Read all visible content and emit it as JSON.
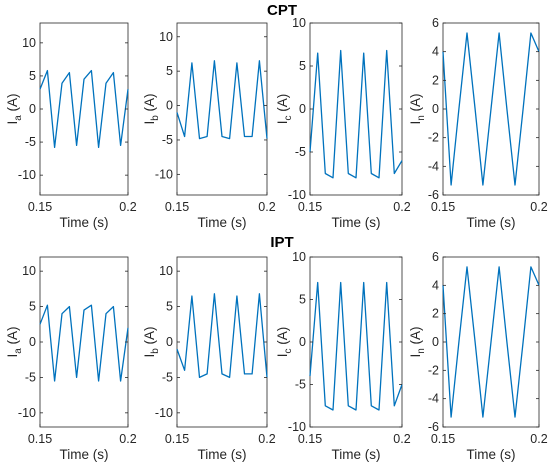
{
  "figure": {
    "groups": [
      {
        "title": "CPT",
        "panels": [
          {
            "ylabel_main": "I",
            "ylabel_sub": "a",
            "ylabel_unit": "(A)",
            "xlabel": "Time (s)",
            "xlim": [
              0.15,
              0.2
            ],
            "ylim": [
              -13,
              13
            ],
            "yticks": [
              -10,
              -5,
              0,
              5,
              10
            ],
            "xticks": [
              "0.15",
              "0.2"
            ]
          },
          {
            "ylabel_main": "I",
            "ylabel_sub": "b",
            "ylabel_unit": "(A)",
            "xlabel": "Time (s)",
            "xlim": [
              0.15,
              0.2
            ],
            "ylim": [
              -13,
              12
            ],
            "yticks": [
              -10,
              -5,
              0,
              5,
              10
            ],
            "xticks": [
              "0.15",
              "0.2"
            ]
          },
          {
            "ylabel_main": "I",
            "ylabel_sub": "c",
            "ylabel_unit": "(A)",
            "xlabel": "Time (s)",
            "xlim": [
              0.15,
              0.2
            ],
            "ylim": [
              -10,
              10
            ],
            "yticks": [
              -10,
              -5,
              0,
              5,
              10
            ],
            "xticks": [
              "0.15",
              "0.2"
            ]
          },
          {
            "ylabel_main": "I",
            "ylabel_sub": "n",
            "ylabel_unit": "(A)",
            "xlabel": "Time (s)",
            "xlim": [
              0.15,
              0.2
            ],
            "ylim": [
              -6,
              6
            ],
            "yticks": [
              -6,
              -4,
              -2,
              0,
              2,
              4,
              6
            ],
            "xticks": [
              "0.15",
              "0.2"
            ]
          }
        ]
      },
      {
        "title": "IPT",
        "panels": [
          {
            "ylabel_main": "I",
            "ylabel_sub": "a",
            "ylabel_unit": "(A)",
            "xlabel": "Time (s)",
            "xlim": [
              0.15,
              0.2
            ],
            "ylim": [
              -12,
              12
            ],
            "yticks": [
              -10,
              -5,
              0,
              5,
              10
            ],
            "xticks": [
              "0.15",
              "0.2"
            ]
          },
          {
            "ylabel_main": "I",
            "ylabel_sub": "b",
            "ylabel_unit": "(A)",
            "xlabel": "Time (s)",
            "xlim": [
              0.15,
              0.2
            ],
            "ylim": [
              -12,
              12
            ],
            "yticks": [
              -10,
              -5,
              0,
              5,
              10
            ],
            "xticks": [
              "0.15",
              "0.2"
            ]
          },
          {
            "ylabel_main": "I",
            "ylabel_sub": "c",
            "ylabel_unit": "(A)",
            "xlabel": "Time (s)",
            "xlim": [
              0.15,
              0.2
            ],
            "ylim": [
              -10,
              10
            ],
            "yticks": [
              -10,
              -5,
              0,
              5,
              10
            ],
            "xticks": [
              "0.15",
              "0.2"
            ]
          },
          {
            "ylabel_main": "I",
            "ylabel_sub": "n",
            "ylabel_unit": "(A)",
            "xlabel": "Time (s)",
            "xlim": [
              0.15,
              0.2
            ],
            "ylim": [
              -6,
              6
            ],
            "yticks": [
              -6,
              -4,
              -2,
              0,
              2,
              4,
              6
            ],
            "xticks": [
              "0.15",
              "0.2"
            ]
          }
        ]
      }
    ]
  },
  "colors": {
    "line": "#0072BD",
    "axes": "#262626"
  },
  "chart_data": [
    {
      "type": "line",
      "group": "CPT",
      "ylabel": "Ia (A)",
      "xlabel": "Time (s)",
      "xlim": [
        0.15,
        0.2
      ],
      "ylim": [
        -13,
        13
      ],
      "grid": false,
      "series": [
        {
          "x": [
            0.15,
            0.1542,
            0.1583,
            0.1625,
            0.1667,
            0.1708,
            0.175,
            0.1792,
            0.1833,
            0.1875,
            0.1917,
            0.1958,
            0.2
          ],
          "values": [
            3,
            5.8,
            -5.8,
            3.9,
            5.5,
            -5.5,
            4.5,
            5.8,
            -5.8,
            3.9,
            5.5,
            -5.5,
            3
          ]
        }
      ]
    },
    {
      "type": "line",
      "group": "CPT",
      "ylabel": "Ib (A)",
      "xlabel": "Time (s)",
      "xlim": [
        0.15,
        0.2
      ],
      "ylim": [
        -13,
        12
      ],
      "grid": false,
      "series": [
        {
          "x": [
            0.15,
            0.1542,
            0.1583,
            0.1625,
            0.1667,
            0.1708,
            0.175,
            0.1792,
            0.1833,
            0.1875,
            0.1917,
            0.1958,
            0.2
          ],
          "values": [
            -1,
            -4.5,
            6.2,
            -4.8,
            -4.5,
            6.5,
            -4.5,
            -4.8,
            6.2,
            -4.5,
            -4.5,
            6.5,
            -4.8
          ]
        }
      ]
    },
    {
      "type": "line",
      "group": "CPT",
      "ylabel": "Ic (A)",
      "xlabel": "Time (s)",
      "xlim": [
        0.15,
        0.2
      ],
      "ylim": [
        -10,
        10
      ],
      "grid": false,
      "series": [
        {
          "x": [
            0.15,
            0.1542,
            0.1583,
            0.1625,
            0.1667,
            0.1708,
            0.175,
            0.1792,
            0.1833,
            0.1875,
            0.1917,
            0.1958,
            0.2
          ],
          "values": [
            -5,
            6.5,
            -7.5,
            -8,
            6.8,
            -7.5,
            -8,
            6.5,
            -7.5,
            -8,
            6.8,
            -7.5,
            -6
          ]
        }
      ]
    },
    {
      "type": "line",
      "group": "CPT",
      "ylabel": "In (A)",
      "xlabel": "Time (s)",
      "xlim": [
        0.15,
        0.2
      ],
      "ylim": [
        -6,
        6
      ],
      "grid": false,
      "series": [
        {
          "x": [
            0.15,
            0.1542,
            0.1583,
            0.1625,
            0.1667,
            0.1708,
            0.175,
            0.1792,
            0.1833,
            0.1875,
            0.1917,
            0.1958,
            0.2
          ],
          "values": [
            4,
            -5.3,
            0,
            5.3,
            0,
            -5.3,
            0,
            5.3,
            0,
            -5.3,
            0,
            5.3,
            4
          ]
        }
      ]
    },
    {
      "type": "line",
      "group": "IPT",
      "ylabel": "Ia (A)",
      "xlabel": "Time (s)",
      "xlim": [
        0.15,
        0.2
      ],
      "ylim": [
        -12,
        12
      ],
      "grid": false,
      "series": [
        {
          "x": [
            0.15,
            0.1542,
            0.1583,
            0.1625,
            0.1667,
            0.1708,
            0.175,
            0.1792,
            0.1833,
            0.1875,
            0.1917,
            0.1958,
            0.2
          ],
          "values": [
            2.5,
            5.2,
            -5.5,
            4,
            5,
            -5,
            4.5,
            5.2,
            -5.5,
            4,
            5,
            -5.5,
            2
          ]
        }
      ]
    },
    {
      "type": "line",
      "group": "IPT",
      "ylabel": "Ib (A)",
      "xlabel": "Time (s)",
      "xlim": [
        0.15,
        0.2
      ],
      "ylim": [
        -12,
        12
      ],
      "grid": false,
      "series": [
        {
          "x": [
            0.15,
            0.1542,
            0.1583,
            0.1625,
            0.1667,
            0.1708,
            0.175,
            0.1792,
            0.1833,
            0.1875,
            0.1917,
            0.1958,
            0.2
          ],
          "values": [
            -1,
            -4,
            6.5,
            -5,
            -4.5,
            6.8,
            -4.5,
            -5,
            6.5,
            -4.5,
            -4.5,
            6.8,
            -5
          ]
        }
      ]
    },
    {
      "type": "line",
      "group": "IPT",
      "ylabel": "Ic (A)",
      "xlabel": "Time (s)",
      "xlim": [
        0.15,
        0.2
      ],
      "ylim": [
        -10,
        10
      ],
      "grid": false,
      "series": [
        {
          "x": [
            0.15,
            0.1542,
            0.1583,
            0.1625,
            0.1667,
            0.1708,
            0.175,
            0.1792,
            0.1833,
            0.1875,
            0.1917,
            0.1958,
            0.2
          ],
          "values": [
            -4,
            7,
            -7.5,
            -8,
            7,
            -7.5,
            -8,
            7,
            -7.5,
            -8,
            7,
            -7.5,
            -5
          ]
        }
      ]
    },
    {
      "type": "line",
      "group": "IPT",
      "ylabel": "In (A)",
      "xlabel": "Time (s)",
      "xlim": [
        0.15,
        0.2
      ],
      "ylim": [
        -6,
        6
      ],
      "grid": false,
      "series": [
        {
          "x": [
            0.15,
            0.1542,
            0.1583,
            0.1625,
            0.1667,
            0.1708,
            0.175,
            0.1792,
            0.1833,
            0.1875,
            0.1917,
            0.1958,
            0.2
          ],
          "values": [
            4,
            -5.3,
            0,
            5.3,
            0,
            -5.3,
            0,
            5.3,
            0,
            -5.3,
            0,
            5.3,
            4
          ]
        }
      ]
    }
  ]
}
